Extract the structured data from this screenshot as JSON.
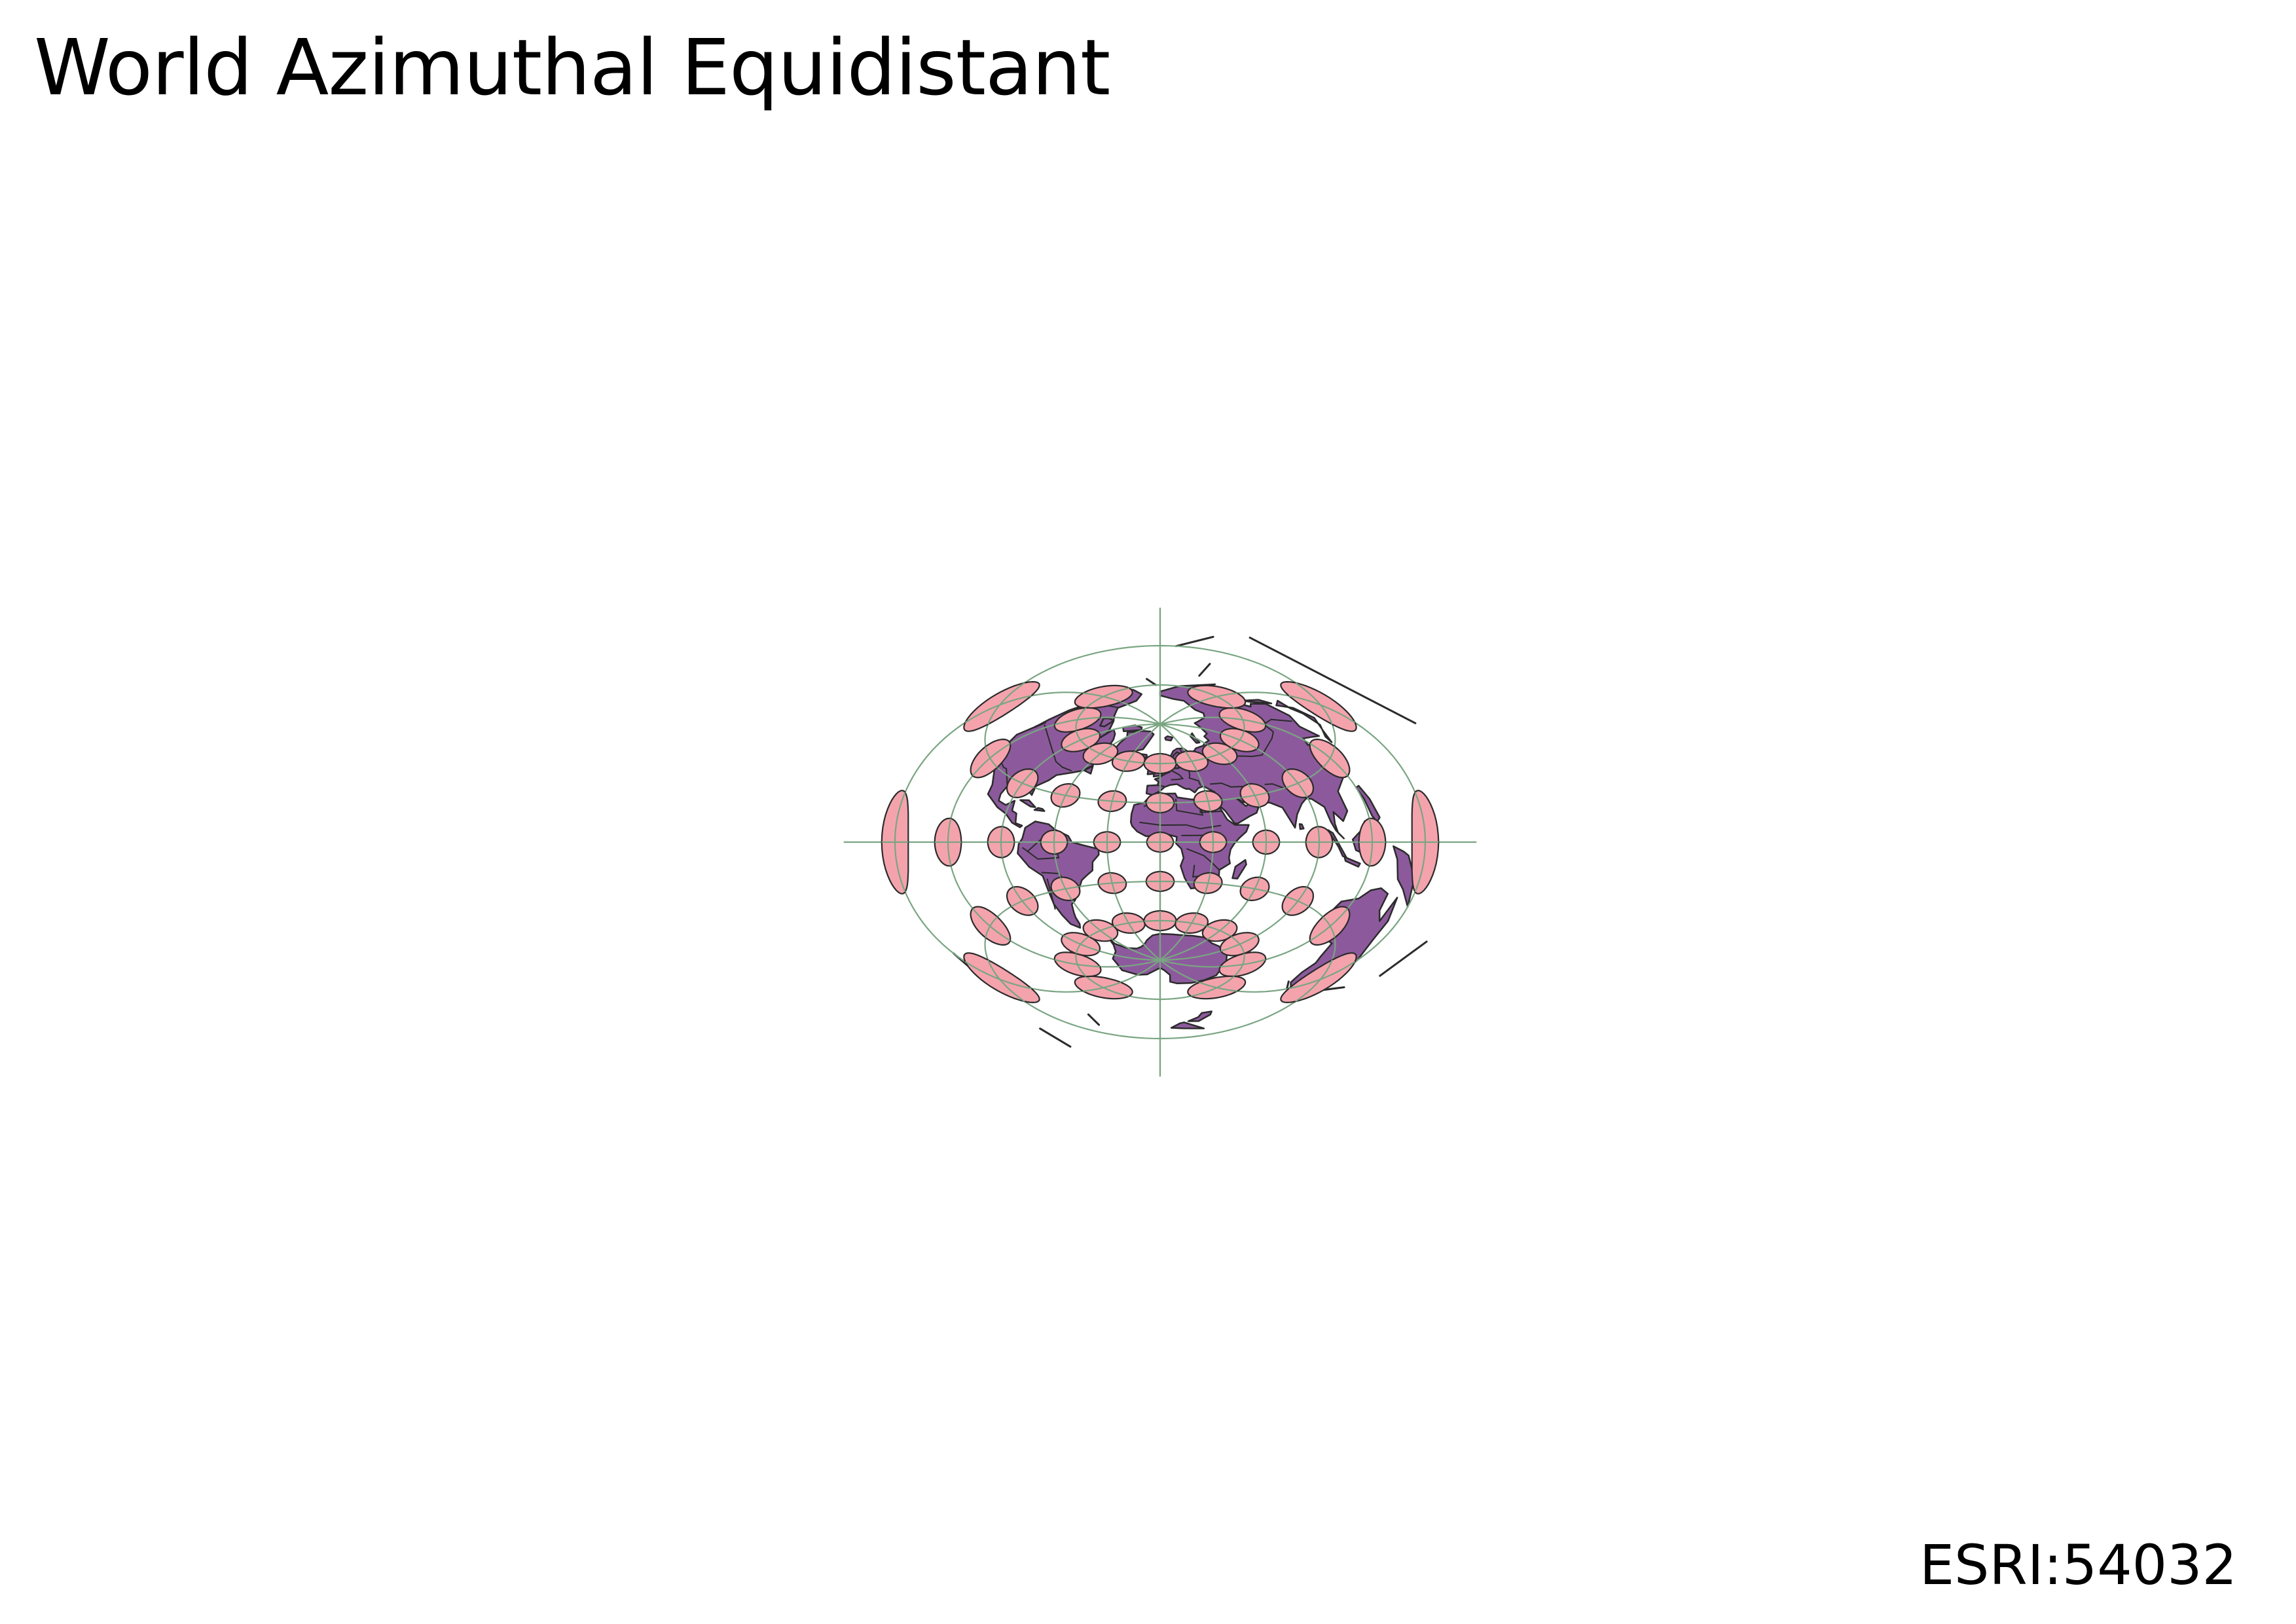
{
  "title": "World Azimuthal Equidistant",
  "crs": "ESRI:54032",
  "colors": {
    "background": "#ffffff",
    "land": "#8c5a9c",
    "land_stroke": "#2b2b2b",
    "graticule": "#7aa582",
    "indicatrix_fill": "#f4a3ad",
    "indicatrix_stroke": "#2b2b2b",
    "title": "#000000"
  },
  "map": {
    "projection": "Azimuthal Equidistant",
    "center": {
      "lon": 0,
      "lat": 0
    },
    "graticule": {
      "meridians_deg": [
        -180,
        -150,
        -120,
        -90,
        -60,
        -30,
        0,
        30,
        60,
        90,
        120,
        150,
        180
      ],
      "parallels_deg": [
        -60,
        -30,
        0,
        30,
        60
      ]
    },
    "tissot_indicatrices": {
      "lons_deg": [
        -180,
        -150,
        -120,
        -90,
        -60,
        -30,
        0,
        30,
        60,
        90,
        120,
        150,
        180
      ],
      "lats_deg": [
        -60,
        -30,
        0,
        30,
        60
      ]
    },
    "layers": [
      "land",
      "country-borders",
      "graticule",
      "tissot-indicatrix"
    ]
  }
}
